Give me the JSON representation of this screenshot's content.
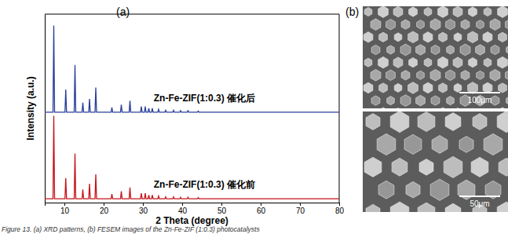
{
  "chart_data": {
    "type": "line",
    "x_label": "2 Theta (degree)",
    "y_label": "Intensity (a.u.)",
    "xlim": [
      5,
      80
    ],
    "xticks": [
      10,
      20,
      30,
      40,
      50,
      60,
      70,
      80
    ],
    "ylim": [
      0,
      100
    ],
    "tick_labels": "x",
    "x": [
      5,
      7.1,
      7.3,
      7.5,
      10.15,
      10.35,
      10.55,
      12.5,
      12.7,
      12.9,
      14.5,
      14.7,
      14.9,
      16.2,
      16.4,
      16.6,
      17.8,
      18.0,
      18.2,
      21.9,
      22.1,
      22.3,
      24.3,
      24.5,
      24.7,
      26.5,
      26.7,
      26.9,
      29.4,
      29.6,
      29.8,
      30.4,
      30.6,
      30.8,
      31.3,
      31.5,
      31.7,
      32.2,
      32.4,
      32.6,
      33.8,
      34.0,
      34.2,
      35.6,
      35.8,
      36.0,
      37.6,
      37.8,
      38.0,
      39.4,
      39.6,
      39.8,
      41.3,
      41.5,
      41.7,
      43.9,
      44.1,
      44.3,
      80
    ],
    "series": [
      {
        "name": "Zn-Fe-ZIF(1:0.3) 催化后",
        "color": "#2b3f9a",
        "values": [
          48,
          48,
          94,
          48,
          48,
          60,
          48,
          48,
          73,
          48,
          48,
          53,
          48,
          48,
          55,
          48,
          48,
          61,
          48,
          48,
          50.5,
          48,
          48,
          52,
          48,
          48,
          54,
          48,
          48,
          51,
          48,
          48,
          51,
          48,
          48,
          50,
          48,
          48,
          50,
          48,
          48,
          49.5,
          48,
          48,
          49,
          48,
          48,
          49,
          48,
          48,
          48.8,
          48,
          48,
          48.8,
          48,
          48,
          48.6,
          48,
          48
        ]
      },
      {
        "name": "Zn-Fe-ZIF(1:0.3) 催化前",
        "color": "#c4161c",
        "values": [
          2,
          2,
          46,
          2,
          2,
          13,
          2,
          2,
          26,
          2,
          2,
          7,
          2,
          2,
          10,
          2,
          2,
          15,
          2,
          2,
          4.5,
          2,
          2,
          6,
          2,
          2,
          8,
          2,
          2,
          5,
          2,
          2,
          5,
          2,
          2,
          4,
          2,
          2,
          4,
          2,
          2,
          3.5,
          2,
          2,
          3,
          2,
          2,
          3,
          2,
          2,
          2.8,
          2,
          2,
          2.8,
          2,
          2,
          2.6,
          2,
          2
        ]
      }
    ]
  },
  "panel_labels": [
    "(a)",
    "(b)"
  ],
  "images": [
    {
      "scale_bar": "100μm"
    },
    {
      "scale_bar": "50μm"
    }
  ],
  "caption": "Figure 13. (a) XRD patterns, (b) FESEM images of the Zn-Fe-ZIF (1:0.3) photocatalysts"
}
